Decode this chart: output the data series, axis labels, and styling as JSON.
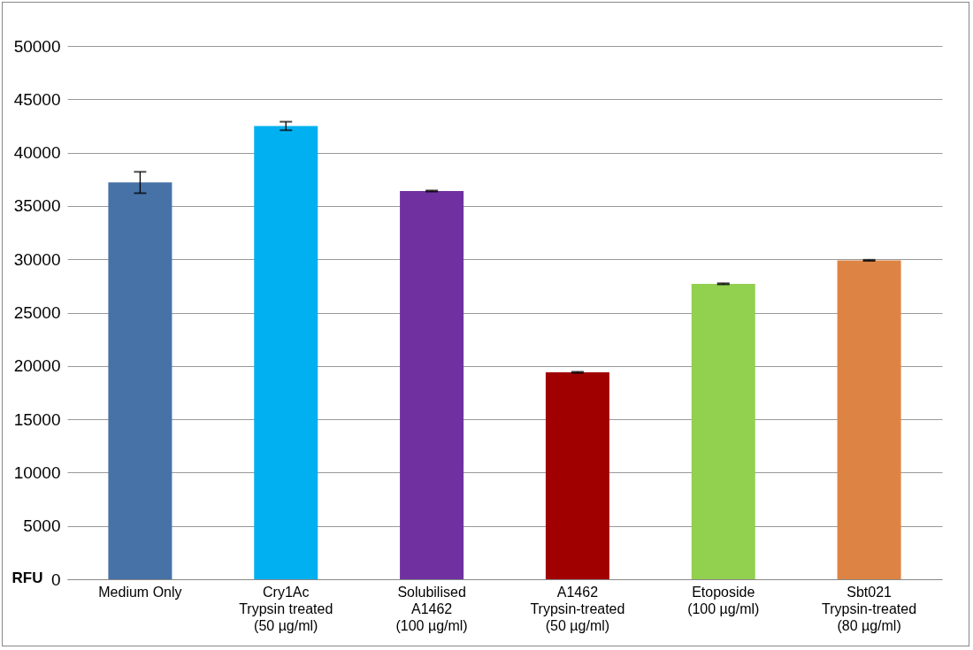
{
  "chart_data": {
    "type": "bar",
    "ylabel": "RFU",
    "categories": [
      "Medium Only",
      "Cry1Ac\nTrypsin treated\n(50 µg/ml)",
      "Solubilised\nA1462\n(100 µg/ml)",
      "A1462\nTrypsin-treated\n(50 µg/ml)",
      "Etoposide\n(100 µg/ml)",
      "Sbt021\nTrypsin-treated\n(80 µg/ml)"
    ],
    "values": [
      37200,
      42500,
      36400,
      19400,
      27700,
      29900
    ],
    "errors": [
      1000,
      400,
      50,
      50,
      50,
      50
    ],
    "colors": [
      "#4672a8",
      "#00b0f0",
      "#7030a0",
      "#a00000",
      "#92d050",
      "#dd8444"
    ],
    "ylim": [
      0,
      50000
    ],
    "yticks": [
      0,
      5000,
      10000,
      15000,
      20000,
      25000,
      30000,
      35000,
      40000,
      45000,
      50000
    ],
    "grid": "y"
  }
}
